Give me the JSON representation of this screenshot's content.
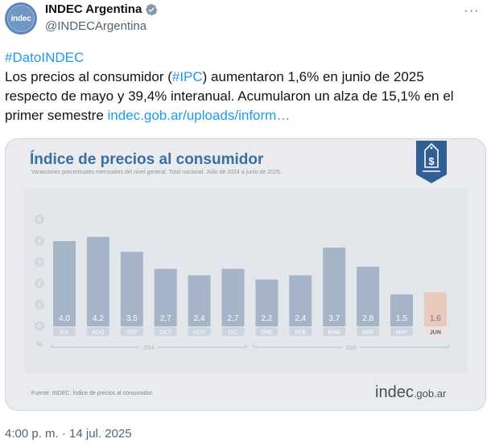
{
  "account": {
    "display_name": "INDEC Argentina",
    "handle": "@INDECArgentina",
    "avatar_text": "indec",
    "verified_icon": "verified-badge-icon",
    "more_icon": "more-dots-icon",
    "more_label": "···"
  },
  "tweet": {
    "line1": {
      "hashtag": "#DatoINDEC"
    },
    "line2": {
      "before": "Los precios al consumidor (",
      "hashtag": "#IPC",
      "after": ") aumentaron 1,6% en junio de 2025"
    },
    "line3": {
      "text": "respecto de mayo y 39,4% interanual. Acumularon un alza de 15,1% en el"
    },
    "line4": {
      "before": "primer semestre ",
      "link": "indec.gob.ar/uploads/inform…"
    }
  },
  "timestamp": "4:00 p. m. · 14 jul. 2025",
  "colors": {
    "link": "#1d9bf0",
    "bar": "#a6b4c8",
    "bar_highlight": "#ecc9bd",
    "title": "#3a6ea5",
    "card_bg": "#e9ebef"
  },
  "card": {
    "badge_icon": "dollar-price-tag-icon",
    "source": "Fuente: INDEC. Índice de precios al consumidor.",
    "logo_main": "indec",
    "logo_suffix": ".gob.ar"
  },
  "chart_data": {
    "type": "bar",
    "title": "Índice de precios al consumidor",
    "subtitle": "Variaciones porcentuales mensuales del nivel general. Total nacional. Julio de 2024 a junio de 2025.",
    "categories": [
      "JUL",
      "AGO",
      "SEP",
      "OCT",
      "NOV",
      "DIC",
      "ENE",
      "FEB",
      "MAR",
      "ABR",
      "MAY",
      "JUN"
    ],
    "values": [
      4.0,
      4.2,
      3.5,
      2.7,
      2.4,
      2.7,
      2.2,
      2.4,
      3.7,
      2.8,
      1.5,
      1.6
    ],
    "value_labels": [
      "4,0",
      "4,2",
      "3,5",
      "2,7",
      "2,4",
      "2,7",
      "2,2",
      "2,4",
      "3,7",
      "2,8",
      "1,5",
      "1,6"
    ],
    "highlight_category": "JUN",
    "y_ticks": [
      "0",
      "1",
      "2",
      "3",
      "4",
      "5"
    ],
    "ylim": [
      0,
      5
    ],
    "ylabel": "%",
    "xlabel": "",
    "year_groups": [
      {
        "label": "2024",
        "from": "JUL",
        "to": "DIC"
      },
      {
        "label": "2025",
        "from": "ENE",
        "to": "JUN"
      }
    ],
    "grid": false,
    "legend": "none"
  }
}
